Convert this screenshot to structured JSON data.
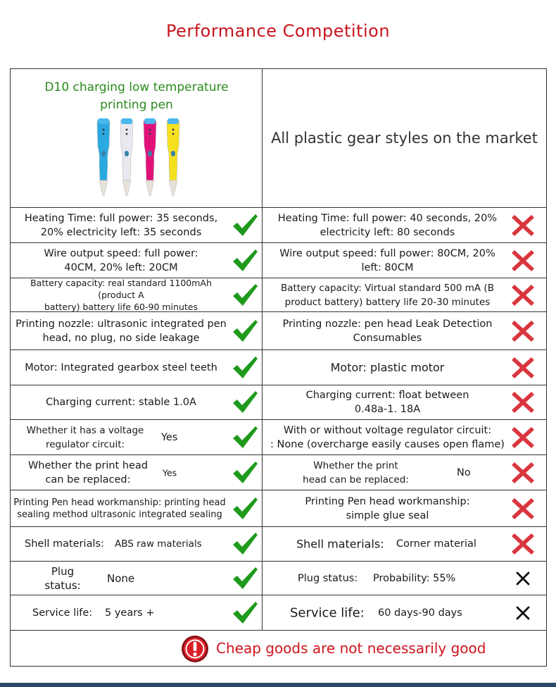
{
  "title": "Performance Competition",
  "header": {
    "left_title_line1": "D10 charging low temperature",
    "left_title_line2": "printing pen",
    "right_title": "All plastic gear styles on the market",
    "pen_colors": [
      "#2aa9e0",
      "#e8e8ee",
      "#e0127a",
      "#f5e020"
    ]
  },
  "rows": [
    {
      "left_lines": [
        "Heating Time: full power: 35 seconds,",
        "20% electricity left: 35 seconds"
      ],
      "right_lines": [
        "Heating Time: full power: 40 seconds, 20%",
        "electricity left: 80 seconds"
      ]
    },
    {
      "left_lines": [
        "Wire output speed: full power:",
        "40CM, 20% left: 20CM"
      ],
      "right_lines": [
        "Wire output speed: full power: 80CM, 20%",
        "left: 80CM"
      ]
    },
    {
      "left_lines": [
        "Battery capacity: real standard 1100mAh (product A",
        "battery) battery life 60-90 minutes"
      ],
      "right_lines": [
        "Battery capacity: Virtual standard 500 mA (B",
        "product battery) battery life 20-30 minutes"
      ]
    },
    {
      "left_lines": [
        "Printing nozzle: ultrasonic integrated pen",
        "head, no plug, no side leakage"
      ],
      "right_lines": [
        "Printing nozzle: pen head Leak Detection",
        "Consumables"
      ]
    },
    {
      "left_lines": [
        "Motor:   Integrated gearbox steel teeth"
      ],
      "right_lines": [
        "Motor: plastic motor"
      ]
    },
    {
      "left_lines": [
        "Charging current: stable 1.0A"
      ],
      "right_lines": [
        "Charging current: float between",
        "0.48a-1. 18A"
      ]
    },
    {
      "left_lines": [
        "Whether it has a voltage",
        "regulator circuit:"
      ],
      "left_value": "Yes",
      "right_lines": [
        "With or without voltage regulator circuit:",
        ": None (overcharge easily causes open flame)"
      ]
    },
    {
      "left_lines": [
        "Whether the print head",
        "can be replaced:"
      ],
      "left_value": "Yes",
      "right_lines": [
        "Whether the print",
        "head can be replaced:"
      ],
      "right_value": "No"
    },
    {
      "left_lines": [
        "Printing Pen head workmanship: printing head",
        "sealing method ultrasonic integrated sealing"
      ],
      "right_lines": [
        "Printing Pen head workmanship:",
        "simple glue seal"
      ]
    },
    {
      "left_lines": [
        "Shell materials:"
      ],
      "left_value": "ABS raw materials",
      "right_lines": [
        "Shell materials:"
      ],
      "right_value": "Corner material"
    },
    {
      "left_lines": [
        "Plug",
        "status:"
      ],
      "left_value": "None",
      "right_lines": [
        "Plug status:"
      ],
      "right_value": "Probability: 55%"
    },
    {
      "left_lines": [
        "Service life:"
      ],
      "left_value": "5 years +",
      "right_lines": [
        "Service life:"
      ],
      "right_value": "60 days-90 days"
    }
  ],
  "footer": {
    "message": "Cheap goods are not necessarily good"
  },
  "colors": {
    "title_red": "#c8141e",
    "check_green": "#1f9a1c",
    "cross_red": "#d9363e",
    "header_green": "#2a8a1c"
  }
}
